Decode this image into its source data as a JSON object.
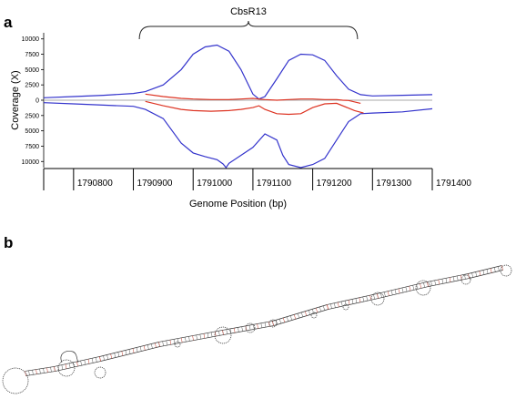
{
  "panel_labels": {
    "a": "a",
    "b": "b"
  },
  "chart_data": {
    "type": "line",
    "title": "",
    "xlabel": "Genome Position (bp)",
    "ylabel": "Coverage (X)",
    "annotation": "CbsR13",
    "annotation_range": [
      1790910,
      1791275
    ],
    "xlim": [
      1790750,
      1791400
    ],
    "ylim": [
      -11000,
      11000
    ],
    "x_ticks": [
      1790800,
      1790900,
      1791000,
      1791100,
      1791200,
      1791300,
      1791400
    ],
    "x_tick_labels": [
      "1790800",
      "1790900",
      "1791000",
      "1791100",
      "1791200",
      "1791300",
      "1791400"
    ],
    "y_ticks": [
      10000,
      7500,
      5000,
      2500,
      0,
      -2500,
      -5000,
      -7500,
      -10000
    ],
    "y_tick_labels": [
      "10000",
      "7500",
      "5000",
      "2500",
      "0",
      "2500",
      "5000",
      "7500",
      "10000"
    ],
    "colors": {
      "total": "#3333cc",
      "unique": "#dd3322",
      "axis": "#000000",
      "baseline": "#aaaaaa"
    },
    "series": [
      {
        "color_key": "total",
        "x": [
          1790750,
          1790800,
          1790850,
          1790900,
          1790920,
          1790950,
          1790980,
          1791000,
          1791020,
          1791040,
          1791060,
          1791080,
          1791100,
          1791110,
          1791120,
          1791140,
          1791160,
          1791180,
          1791200,
          1791220,
          1791240,
          1791260,
          1791280,
          1791300,
          1791350,
          1791400
        ],
        "y": [
          400,
          600,
          800,
          1100,
          1400,
          2500,
          5000,
          7500,
          8700,
          9000,
          8000,
          5000,
          1000,
          200,
          600,
          3500,
          6500,
          7500,
          7400,
          6500,
          4000,
          1800,
          900,
          700,
          800,
          900
        ]
      },
      {
        "color_key": "total",
        "x": [
          1790750,
          1790800,
          1790850,
          1790900,
          1790920,
          1790950,
          1790980,
          1791000,
          1791020,
          1791040,
          1791050,
          1791055,
          1791060,
          1791080,
          1791100,
          1791120,
          1791140,
          1791150,
          1791160,
          1791180,
          1791200,
          1791220,
          1791240,
          1791260,
          1791280,
          1791300,
          1791350,
          1791400
        ],
        "y": [
          -400,
          -600,
          -800,
          -1000,
          -1500,
          -3000,
          -7000,
          -8600,
          -9200,
          -9700,
          -10400,
          -11000,
          -10300,
          -9000,
          -7700,
          -5500,
          -6500,
          -9000,
          -10500,
          -11000,
          -10500,
          -9500,
          -6500,
          -3500,
          -2200,
          -2100,
          -1900,
          -1400
        ]
      },
      {
        "color_key": "unique",
        "x": [
          1790920,
          1790950,
          1790980,
          1791000,
          1791030,
          1791060,
          1791080,
          1791100,
          1791110,
          1791120,
          1791140,
          1791160,
          1791180,
          1791200,
          1791220,
          1791240,
          1791250,
          1791260,
          1791280
        ],
        "y": [
          1000,
          600,
          300,
          200,
          100,
          100,
          200,
          300,
          200,
          100,
          0,
          100,
          200,
          200,
          100,
          100,
          0,
          -50,
          -500
        ]
      },
      {
        "color_key": "unique",
        "x": [
          1790920,
          1790950,
          1790980,
          1791000,
          1791030,
          1791060,
          1791080,
          1791100,
          1791110,
          1791120,
          1791140,
          1791160,
          1791180,
          1791200,
          1791220,
          1791240,
          1791260,
          1791270,
          1791285
        ],
        "y": [
          -200,
          -900,
          -1500,
          -1700,
          -1800,
          -1700,
          -1500,
          -1200,
          -900,
          -1500,
          -2200,
          -2300,
          -2200,
          -1200,
          -600,
          -500,
          -1300,
          -1700,
          -2100
        ]
      }
    ]
  }
}
